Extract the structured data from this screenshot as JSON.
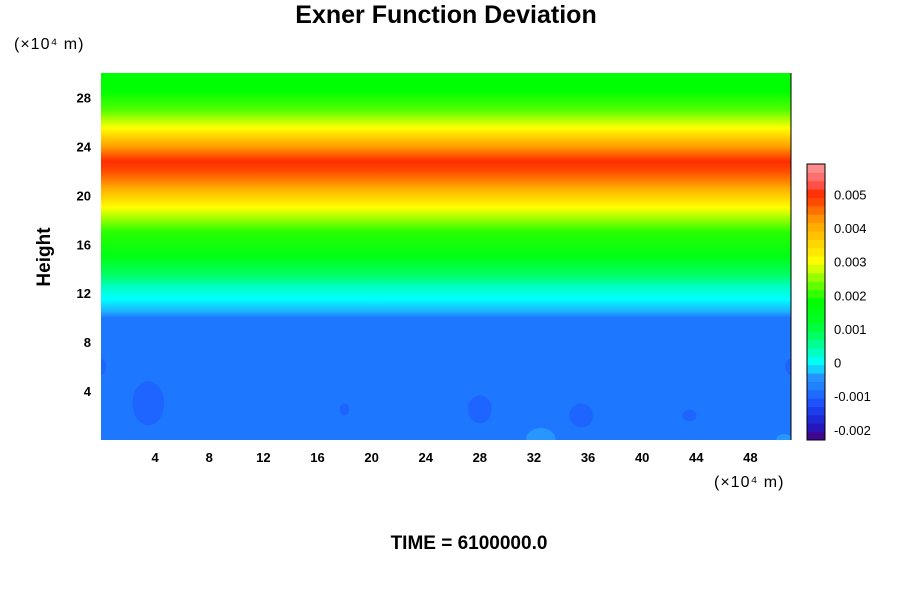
{
  "chart_data": {
    "type": "heatmap",
    "title": "Exner Function Deviation",
    "ylabel": "Height",
    "x_unit": "(×10⁴ m)",
    "y_unit": "(×10⁴ m)",
    "x_ticks": [
      4,
      8,
      12,
      16,
      20,
      24,
      28,
      32,
      36,
      40,
      44,
      48
    ],
    "y_ticks": [
      4,
      8,
      12,
      16,
      20,
      24,
      28
    ],
    "xlim": [
      0,
      51
    ],
    "ylim": [
      0,
      30
    ],
    "colorbar": {
      "ticks": [
        0.005,
        0.004,
        0.003,
        0.002,
        0.001,
        0,
        -0.001,
        -0.002
      ],
      "tick_labels": [
        "0.005",
        "0.004",
        "0.003",
        "0.002",
        "0.001",
        "0",
        "-0.001",
        "-0.002"
      ],
      "range": [
        -0.0023,
        0.0059
      ],
      "levels": 33
    },
    "vertical_profile": [
      {
        "height": 0,
        "value": -0.0008
      },
      {
        "height": 10.0,
        "value": -0.0008
      },
      {
        "height": 10.5,
        "value": -0.0003
      },
      {
        "height": 11.5,
        "value": 0.0
      },
      {
        "height": 12.5,
        "value": 0.0003
      },
      {
        "height": 13.5,
        "value": 0.0008
      },
      {
        "height": 15.0,
        "value": 0.0015
      },
      {
        "height": 17.0,
        "value": 0.002
      },
      {
        "height": 19.0,
        "value": 0.003
      },
      {
        "height": 20.5,
        "value": 0.004
      },
      {
        "height": 22.0,
        "value": 0.0048
      },
      {
        "height": 22.8,
        "value": 0.005
      },
      {
        "height": 24.0,
        "value": 0.0042
      },
      {
        "height": 25.5,
        "value": 0.003
      },
      {
        "height": 27.0,
        "value": 0.0022
      },
      {
        "height": 28.5,
        "value": 0.0018
      },
      {
        "height": 30.0,
        "value": 0.0018
      }
    ],
    "anomalies": [
      {
        "x": 3.5,
        "y": 3.0,
        "value": -0.001
      },
      {
        "x": 18.0,
        "y": 2.5,
        "value": -0.001
      },
      {
        "x": 28.0,
        "y": 2.5,
        "value": -0.001
      },
      {
        "x": 35.5,
        "y": 2.0,
        "value": -0.001
      },
      {
        "x": 43.5,
        "y": 2.0,
        "value": -0.001
      },
      {
        "x": 51.0,
        "y": 6.0,
        "value": -0.001
      },
      {
        "x": 0.0,
        "y": 6.0,
        "value": -0.001
      },
      {
        "x": 32.5,
        "y": 0.0,
        "value": -0.0004
      },
      {
        "x": 50.5,
        "y": 0.0,
        "value": -0.0004
      }
    ]
  },
  "caption": "TIME = 6100000.0",
  "colors": {
    "scale": [
      "#4b0082",
      "#1e1ecc",
      "#1e50ff",
      "#1e78ff",
      "#00ffff",
      "#00ff00",
      "#ffff00",
      "#ffa500",
      "#ff3c00",
      "#ff9a9a"
    ]
  }
}
